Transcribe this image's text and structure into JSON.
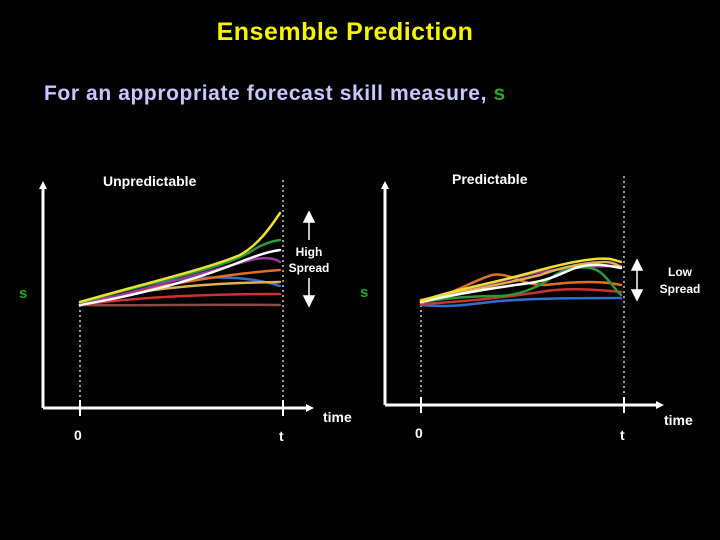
{
  "slide": {
    "title": "Ensemble Prediction",
    "subtitle_prefix": "For an appropriate forecast skill measure,",
    "subtitle_symbol": "s"
  },
  "colors": {
    "background": "#000000",
    "title": "#f5f500",
    "subtitle": "#c8c8ff",
    "symbol": "#22aa22",
    "axis": "#ffffff"
  },
  "panels": [
    {
      "title": "Unpredictable",
      "y_axis_label": "s",
      "x_axis_label": "time",
      "x_ticks": [
        "0",
        "t"
      ],
      "spread_label": [
        "High",
        "Spread"
      ]
    },
    {
      "title": "Predictable",
      "y_axis_label": "s",
      "x_axis_label": "time",
      "x_ticks": [
        "0",
        "t"
      ],
      "spread_label": [
        "Low",
        "Spread"
      ]
    }
  ],
  "ensemble_colors": [
    "#f0e030",
    "#2a9a3a",
    "#ffffff",
    "#9a3aa0",
    "#e07020",
    "#e0b050",
    "#2f6fd0",
    "#d03030",
    "#8a4848"
  ]
}
